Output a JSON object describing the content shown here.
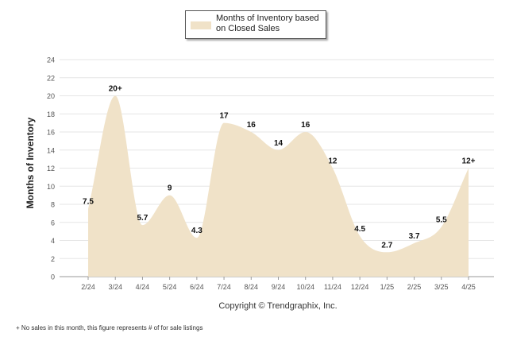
{
  "chart_data": {
    "type": "area",
    "ylabel": "Months of Inventory",
    "xlabel": "",
    "ylim": [
      0,
      24
    ],
    "yticks": [
      0,
      2,
      4,
      6,
      8,
      10,
      12,
      14,
      16,
      18,
      20,
      22,
      24
    ],
    "grid": true,
    "legend_placement": "top-center",
    "categories": [
      "2/24",
      "3/24",
      "4/24",
      "5/24",
      "6/24",
      "7/24",
      "8/24",
      "9/24",
      "10/24",
      "11/24",
      "12/24",
      "1/25",
      "2/25",
      "3/25",
      "4/25"
    ],
    "series": [
      {
        "name": "Months of Inventory based on Closed Sales",
        "values": [
          7.5,
          20,
          5.7,
          9,
          4.3,
          17,
          16,
          14,
          16,
          12,
          4.5,
          2.7,
          3.7,
          5.5,
          12
        ],
        "labels": [
          "7.5",
          "20+",
          "5.7",
          "9",
          "4.3",
          "17",
          "16",
          "14",
          "16",
          "12",
          "4.5",
          "2.7",
          "3.7",
          "5.5",
          "12+"
        ],
        "color": "#f0e2c8"
      }
    ],
    "colors": {
      "fill": "#f0e2c8",
      "grid": "#e6e6e6",
      "axis_text": "#555555"
    }
  },
  "copyright": "Copyright © Trendgraphix, Inc.",
  "footnote": "+ No sales in this month, this figure represents # of for sale listings"
}
